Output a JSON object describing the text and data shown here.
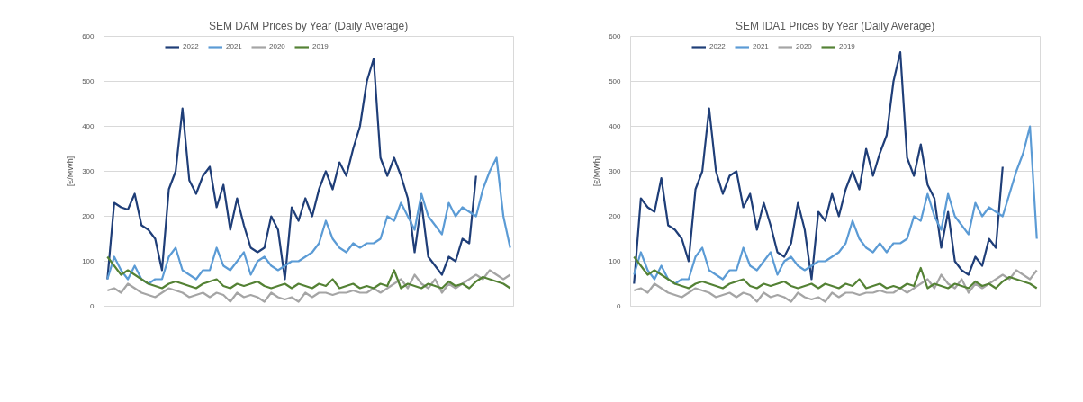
{
  "chart_data": [
    {
      "type": "line",
      "title": "SEM DAM Prices by Year (Daily Average)",
      "ylabel": "[€/MWh]",
      "ylim": [
        0,
        600
      ],
      "yticks": [
        0,
        100,
        200,
        300,
        400,
        500,
        600
      ],
      "grid": "y",
      "legend": "top",
      "tick_labels": "y",
      "categories": [
        null,
        null,
        null,
        null,
        null,
        null,
        null,
        null,
        null,
        null,
        null,
        null,
        null,
        null,
        null,
        null,
        null,
        null,
        null,
        null,
        null,
        null,
        null,
        null,
        null,
        null,
        null,
        null,
        null,
        null,
        null,
        null,
        null,
        null,
        null,
        null,
        null,
        null,
        null,
        null,
        null,
        null,
        null,
        null,
        null,
        null,
        null,
        null,
        null,
        null,
        null,
        null,
        null,
        null,
        null,
        null,
        null,
        null,
        null,
        null
      ],
      "series": [
        {
          "name": "2022",
          "color": "#1f3e78",
          "values": [
            60,
            230,
            220,
            215,
            250,
            180,
            170,
            150,
            80,
            260,
            300,
            440,
            280,
            250,
            290,
            310,
            220,
            270,
            170,
            240,
            180,
            130,
            120,
            130,
            200,
            170,
            60,
            220,
            190,
            240,
            200,
            260,
            300,
            260,
            320,
            290,
            350,
            400,
            500,
            550,
            330,
            290,
            330,
            290,
            240,
            120,
            230,
            110,
            90,
            70,
            110,
            100,
            150,
            140,
            290,
            null,
            null,
            null,
            null,
            null
          ]
        },
        {
          "name": "2021",
          "color": "#5b9bd5",
          "values": [
            60,
            110,
            80,
            60,
            90,
            60,
            50,
            60,
            60,
            110,
            130,
            80,
            70,
            60,
            80,
            80,
            130,
            90,
            80,
            100,
            120,
            70,
            100,
            110,
            90,
            80,
            90,
            100,
            100,
            110,
            120,
            140,
            190,
            150,
            130,
            120,
            140,
            130,
            140,
            140,
            150,
            200,
            190,
            230,
            200,
            170,
            250,
            200,
            180,
            160,
            230,
            200,
            220,
            210,
            200,
            260,
            300,
            330,
            200,
            130
          ]
        },
        {
          "name": "2020",
          "color": "#a5a5a5",
          "values": [
            35,
            40,
            30,
            50,
            40,
            30,
            25,
            20,
            30,
            40,
            35,
            30,
            20,
            25,
            30,
            20,
            30,
            25,
            10,
            30,
            20,
            25,
            20,
            10,
            30,
            20,
            15,
            20,
            10,
            30,
            20,
            30,
            30,
            25,
            30,
            30,
            35,
            30,
            30,
            40,
            30,
            40,
            50,
            60,
            40,
            70,
            50,
            40,
            60,
            30,
            50,
            40,
            50,
            60,
            70,
            60,
            80,
            70,
            60,
            70
          ]
        },
        {
          "name": "2019",
          "color": "#548235",
          "values": [
            110,
            90,
            70,
            80,
            70,
            60,
            50,
            45,
            40,
            50,
            55,
            50,
            45,
            40,
            50,
            55,
            60,
            45,
            40,
            50,
            45,
            50,
            55,
            45,
            40,
            45,
            50,
            40,
            50,
            45,
            40,
            50,
            45,
            60,
            40,
            45,
            50,
            40,
            45,
            40,
            50,
            45,
            80,
            40,
            50,
            45,
            40,
            50,
            45,
            40,
            55,
            45,
            50,
            40,
            55,
            65,
            60,
            55,
            50,
            40
          ]
        }
      ]
    },
    {
      "type": "line",
      "title": "SEM IDA1 Prices by Year (Daily Average)",
      "ylabel": "[€/MWh]",
      "ylim": [
        0,
        600
      ],
      "yticks": [
        0,
        100,
        200,
        300,
        400,
        500,
        600
      ],
      "grid": "y",
      "legend": "top",
      "tick_labels": "y",
      "categories": [
        null,
        null,
        null,
        null,
        null,
        null,
        null,
        null,
        null,
        null,
        null,
        null,
        null,
        null,
        null,
        null,
        null,
        null,
        null,
        null,
        null,
        null,
        null,
        null,
        null,
        null,
        null,
        null,
        null,
        null,
        null,
        null,
        null,
        null,
        null,
        null,
        null,
        null,
        null,
        null,
        null,
        null,
        null,
        null,
        null,
        null,
        null,
        null,
        null,
        null,
        null,
        null,
        null,
        null,
        null,
        null,
        null,
        null,
        null,
        null
      ],
      "series": [
        {
          "name": "2022",
          "color": "#1f3e78",
          "values": [
            50,
            240,
            220,
            210,
            285,
            180,
            170,
            150,
            100,
            260,
            300,
            440,
            300,
            250,
            290,
            300,
            220,
            250,
            170,
            230,
            180,
            120,
            110,
            140,
            230,
            170,
            60,
            210,
            190,
            250,
            200,
            260,
            300,
            260,
            350,
            290,
            340,
            380,
            500,
            565,
            330,
            290,
            360,
            270,
            240,
            130,
            210,
            100,
            80,
            70,
            110,
            90,
            150,
            130,
            310,
            null,
            null,
            null,
            null,
            null
          ]
        },
        {
          "name": "2021",
          "color": "#5b9bd5",
          "values": [
            70,
            120,
            80,
            60,
            90,
            60,
            50,
            60,
            60,
            110,
            130,
            80,
            70,
            60,
            80,
            80,
            130,
            90,
            80,
            100,
            120,
            70,
            100,
            110,
            90,
            80,
            90,
            100,
            100,
            110,
            120,
            140,
            190,
            150,
            130,
            120,
            140,
            120,
            140,
            140,
            150,
            200,
            190,
            250,
            200,
            170,
            250,
            200,
            180,
            160,
            230,
            200,
            220,
            210,
            200,
            250,
            300,
            340,
            400,
            150
          ]
        },
        {
          "name": "2020",
          "color": "#a5a5a5",
          "values": [
            35,
            40,
            30,
            50,
            40,
            30,
            25,
            20,
            30,
            40,
            35,
            30,
            20,
            25,
            30,
            20,
            30,
            25,
            10,
            30,
            20,
            25,
            20,
            10,
            30,
            20,
            15,
            20,
            10,
            30,
            20,
            30,
            30,
            25,
            30,
            30,
            35,
            30,
            30,
            40,
            30,
            40,
            50,
            60,
            40,
            70,
            50,
            40,
            60,
            30,
            50,
            40,
            50,
            60,
            70,
            60,
            80,
            70,
            60,
            80
          ]
        },
        {
          "name": "2019",
          "color": "#548235",
          "values": [
            110,
            90,
            70,
            80,
            70,
            60,
            50,
            45,
            40,
            50,
            55,
            50,
            45,
            40,
            50,
            55,
            60,
            45,
            40,
            50,
            45,
            50,
            55,
            45,
            40,
            45,
            50,
            40,
            50,
            45,
            40,
            50,
            45,
            60,
            40,
            45,
            50,
            40,
            45,
            40,
            50,
            45,
            85,
            40,
            50,
            45,
            40,
            50,
            45,
            40,
            55,
            45,
            50,
            40,
            55,
            65,
            60,
            55,
            50,
            40
          ]
        }
      ]
    }
  ]
}
